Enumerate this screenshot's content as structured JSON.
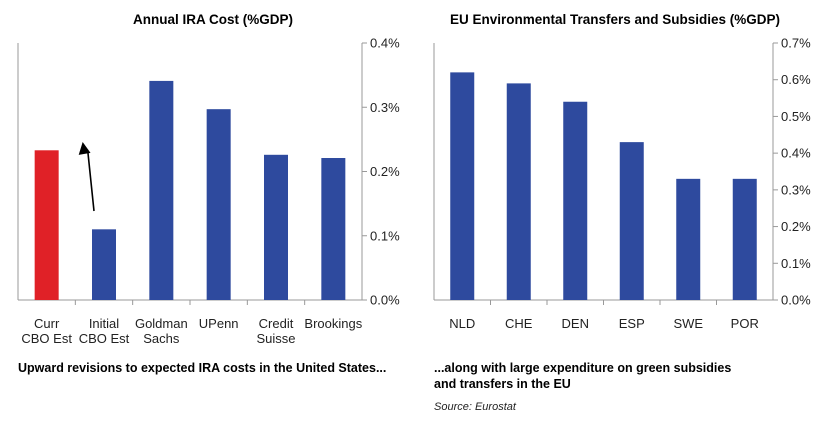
{
  "chart_data": [
    {
      "type": "bar",
      "title": "Annual IRA Cost (%GDP)",
      "categories": [
        [
          "Curr",
          "CBO Est"
        ],
        [
          "Initial",
          "CBO Est"
        ],
        [
          "Goldman",
          "Sachs"
        ],
        [
          "UPenn"
        ],
        [
          "Credit",
          "Suisse"
        ],
        [
          "Brookings"
        ]
      ],
      "values": [
        0.233,
        0.11,
        0.341,
        0.297,
        0.226,
        0.221
      ],
      "colors": [
        "#e02127",
        "#2e4a9e",
        "#2e4a9e",
        "#2e4a9e",
        "#2e4a9e",
        "#2e4a9e"
      ],
      "ylim": [
        0,
        0.4
      ],
      "yticks": [
        "0.0%",
        "0.1%",
        "0.2%",
        "0.3%",
        "0.4%"
      ],
      "y_axis_side": "right",
      "annotation": "arrow pointing from Initial CBO Est up to Curr CBO Est",
      "xlabel": "",
      "ylabel": ""
    },
    {
      "type": "bar",
      "title": "EU Environmental Transfers and Subsidies (%GDP)",
      "categories": [
        [
          "NLD"
        ],
        [
          "CHE"
        ],
        [
          "DEN"
        ],
        [
          "ESP"
        ],
        [
          "SWE"
        ],
        [
          "POR"
        ]
      ],
      "values": [
        0.62,
        0.59,
        0.54,
        0.43,
        0.33,
        0.33
      ],
      "colors": [
        "#2e4a9e",
        "#2e4a9e",
        "#2e4a9e",
        "#2e4a9e",
        "#2e4a9e",
        "#2e4a9e"
      ],
      "ylim": [
        0,
        0.7
      ],
      "yticks": [
        "0.0%",
        "0.1%",
        "0.2%",
        "0.3%",
        "0.4%",
        "0.5%",
        "0.6%",
        "0.7%"
      ],
      "y_axis_side": "right",
      "xlabel": "",
      "ylabel": ""
    }
  ],
  "captions": {
    "left": "Upward revisions to expected IRA costs in the United States...",
    "right_line1": "...along with large expenditure on green subsidies",
    "right_line2": "and transfers in the EU",
    "source": "Source: Eurostat"
  },
  "colors": {
    "axis": "#999999",
    "bar": "#2e4a9e",
    "highlight": "#e02127"
  }
}
